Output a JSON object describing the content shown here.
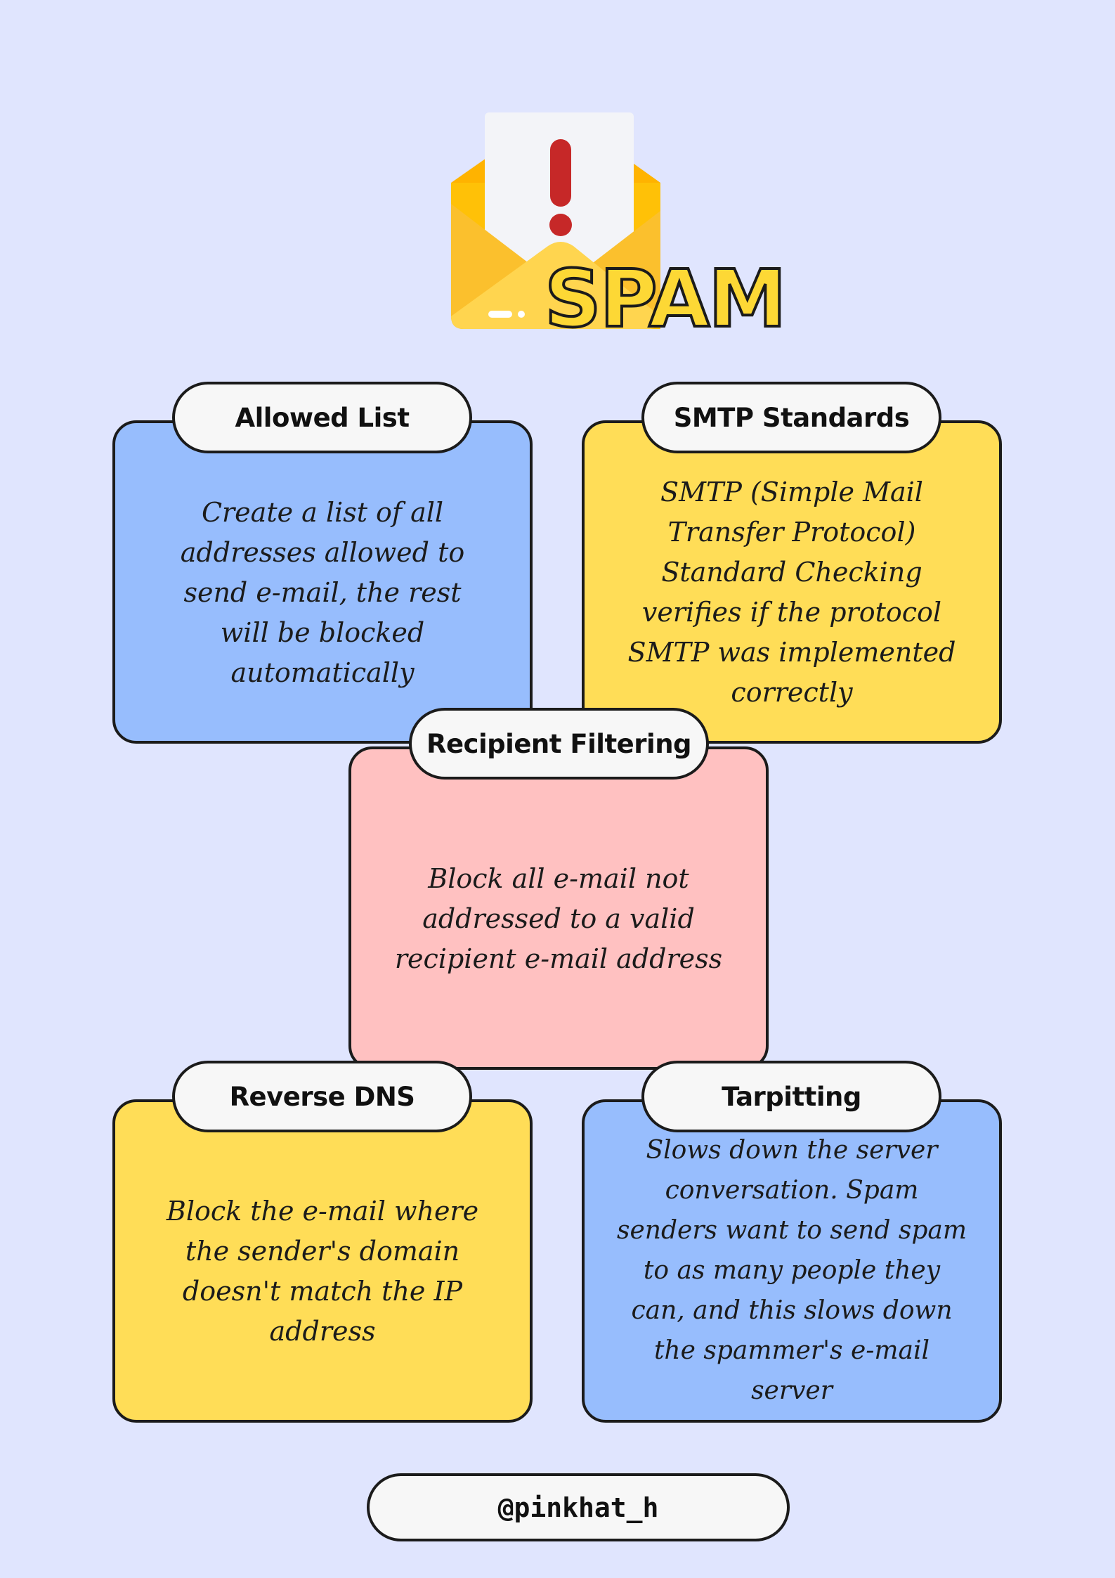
{
  "header": {
    "title": "SPAM",
    "icon": "envelope-alert-icon"
  },
  "cards": {
    "allowed_list": {
      "label": "Allowed List",
      "text": "Create a list of all addresses allowed to send e-mail, the rest will be blocked automatically",
      "color": "#97bdfd"
    },
    "smtp_standards": {
      "label": "SMTP Standards",
      "text": "SMTP (Simple Mail Transfer Protocol) Standard Checking verifies if the protocol SMTP was implemented correctly",
      "color": "#ffdd57"
    },
    "recipient_filtering": {
      "label": "Recipient Filtering",
      "text": "Block all e-mail not addressed to a valid recipient e-mail address",
      "color": "#ffc1c1"
    },
    "reverse_dns": {
      "label": "Reverse DNS",
      "text": "Block the e-mail where the sender's domain doesn't match the IP address",
      "color": "#ffdd57"
    },
    "tarpitting": {
      "label": "Tarpitting",
      "text": "Slows down the server conversation. Spam senders  want to send spam to as many people they can, and this slows down the spammer's e-mail server",
      "color": "#97bdfd"
    }
  },
  "footer": {
    "handle": "@pinkhat_h"
  },
  "colors": {
    "background": "#e0e5fe",
    "outline": "#1b1b1b",
    "title_fill": "#fdd835",
    "alert_red": "#c62828"
  }
}
